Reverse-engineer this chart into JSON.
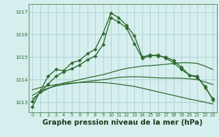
{
  "background_color": "#d6eeee",
  "grid_color": "#aacfcf",
  "line_color": "#2d6a2d",
  "title": "Graphe pression niveau de la mer (hPa)",
  "title_fontsize": 7.5,
  "xlim": [
    -0.5,
    23.5
  ],
  "ylim": [
    1012.55,
    1017.35
  ],
  "yticks": [
    1013,
    1014,
    1015,
    1016,
    1017
  ],
  "xticks": [
    0,
    1,
    2,
    3,
    4,
    5,
    6,
    7,
    8,
    9,
    10,
    11,
    12,
    13,
    14,
    15,
    16,
    17,
    18,
    19,
    20,
    21,
    22,
    23
  ],
  "series": [
    {
      "x": [
        0,
        1,
        2,
        3,
        4,
        5,
        6,
        7,
        8,
        9,
        10,
        11,
        12,
        13,
        14,
        15,
        16,
        17,
        18,
        19,
        20,
        21,
        22,
        23
      ],
      "y": [
        1012.8,
        1013.5,
        1014.15,
        1014.45,
        1014.4,
        1014.75,
        1014.85,
        1015.15,
        1015.35,
        1016.05,
        1016.95,
        1016.75,
        1016.4,
        1015.95,
        1015.0,
        1015.1,
        1015.05,
        1015.0,
        1014.85,
        1014.55,
        1014.2,
        1014.15,
        1013.65,
        1013.15
      ],
      "marker": "D",
      "markersize": 2.5,
      "linewidth": 1.0
    },
    {
      "x": [
        0,
        1,
        2,
        3,
        4,
        5,
        6,
        7,
        8,
        9,
        10,
        11,
        12,
        13,
        14,
        15,
        16,
        17,
        18,
        19,
        20,
        21,
        22,
        23
      ],
      "y": [
        1013.05,
        1013.45,
        1013.8,
        1014.15,
        1014.35,
        1014.48,
        1014.65,
        1014.88,
        1015.05,
        1015.55,
        1016.75,
        1016.55,
        1016.3,
        1015.6,
        1014.95,
        1015.05,
        1015.1,
        1014.95,
        1014.75,
        1014.45,
        1014.2,
        1014.1,
        1013.7,
        1013.1
      ],
      "marker": "D",
      "markersize": 2.5,
      "linewidth": 1.0
    },
    {
      "x": [
        0,
        1,
        2,
        3,
        4,
        5,
        6,
        7,
        8,
        9,
        10,
        11,
        12,
        13,
        14,
        15,
        16,
        17,
        18,
        19,
        20,
        21,
        22,
        23
      ],
      "y": [
        1013.15,
        1013.42,
        1013.6,
        1013.75,
        1013.85,
        1013.92,
        1014.0,
        1014.08,
        1014.15,
        1014.22,
        1014.32,
        1014.42,
        1014.5,
        1014.55,
        1014.6,
        1014.62,
        1014.65,
        1014.68,
        1014.72,
        1014.75,
        1014.75,
        1014.72,
        1014.6,
        1014.45
      ],
      "marker": null,
      "markersize": 0,
      "linewidth": 0.9
    },
    {
      "x": [
        0,
        1,
        2,
        3,
        4,
        5,
        6,
        7,
        8,
        9,
        10,
        11,
        12,
        13,
        14,
        15,
        16,
        17,
        18,
        19,
        20,
        21,
        22,
        23
      ],
      "y": [
        1013.3,
        1013.5,
        1013.62,
        1013.72,
        1013.78,
        1013.83,
        1013.88,
        1013.92,
        1013.96,
        1014.0,
        1014.05,
        1014.1,
        1014.12,
        1014.13,
        1014.12,
        1014.1,
        1014.08,
        1014.07,
        1014.07,
        1014.06,
        1014.04,
        1014.0,
        1013.9,
        1013.78
      ],
      "marker": null,
      "markersize": 0,
      "linewidth": 0.9
    },
    {
      "x": [
        0,
        1,
        2,
        3,
        4,
        5,
        6,
        7,
        8,
        9,
        10,
        11,
        12,
        13,
        14,
        15,
        16,
        17,
        18,
        19,
        20,
        21,
        22,
        23
      ],
      "y": [
        1013.55,
        1013.65,
        1013.72,
        1013.78,
        1013.82,
        1013.85,
        1013.87,
        1013.88,
        1013.88,
        1013.87,
        1013.84,
        1013.8,
        1013.75,
        1013.7,
        1013.62,
        1013.54,
        1013.46,
        1013.38,
        1013.3,
        1013.22,
        1013.14,
        1013.07,
        1013.0,
        1012.92
      ],
      "marker": null,
      "markersize": 0,
      "linewidth": 0.9
    }
  ]
}
